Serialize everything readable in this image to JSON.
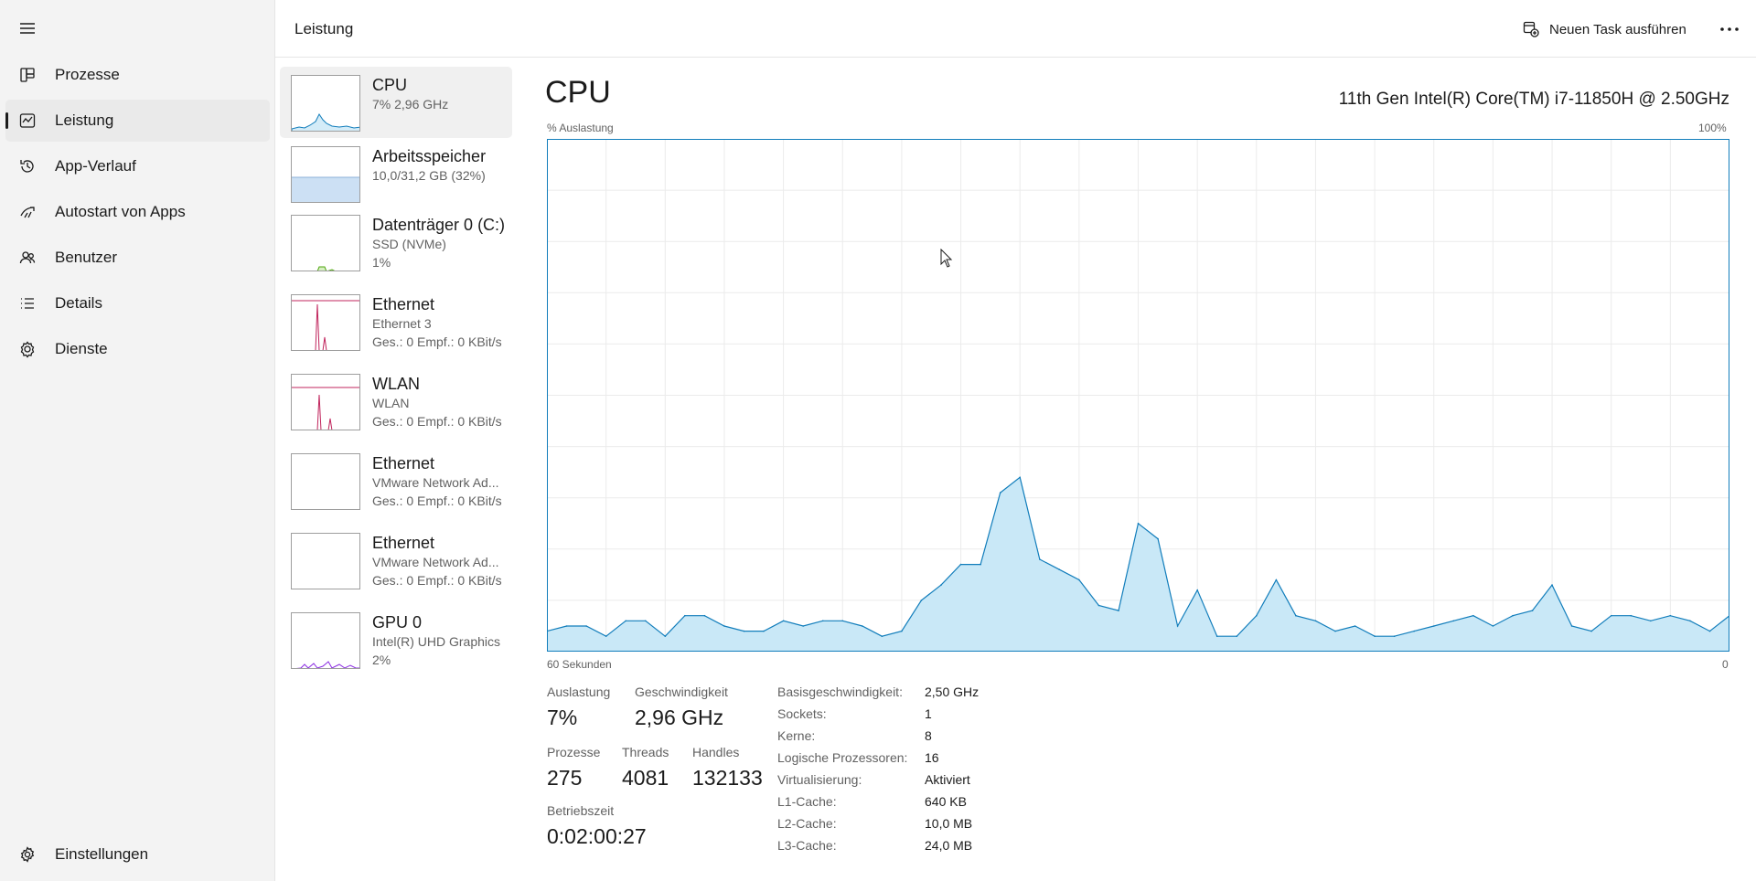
{
  "nav": {
    "items": [
      {
        "label": "Prozesse",
        "icon": "processes-icon"
      },
      {
        "label": "Leistung",
        "icon": "performance-icon",
        "active": true
      },
      {
        "label": "App-Verlauf",
        "icon": "history-icon"
      },
      {
        "label": "Autostart von Apps",
        "icon": "startup-icon"
      },
      {
        "label": "Benutzer",
        "icon": "users-icon"
      },
      {
        "label": "Details",
        "icon": "details-icon"
      },
      {
        "label": "Dienste",
        "icon": "services-icon"
      }
    ],
    "settings_label": "Einstellungen"
  },
  "header": {
    "title": "Leistung",
    "run_task_label": "Neuen Task ausführen",
    "more_label": "···"
  },
  "devices": [
    {
      "name": "CPU",
      "line2": "7%  2,96 GHz",
      "line3": "",
      "graph_color": "#117dbb",
      "graph_fill": "#d4ecf8"
    },
    {
      "name": "Arbeitsspeicher",
      "line2": "10,0/31,2 GB (32%)",
      "line3": "",
      "graph_color": "#8bb2d9",
      "graph_fill": "#cce0f4"
    },
    {
      "name": "Datenträger 0 (C:)",
      "line2": "SSD (NVMe)",
      "line3": "1%",
      "graph_color": "#4da60c",
      "graph_fill": "#d6efc2"
    },
    {
      "name": "Ethernet",
      "line2": "Ethernet 3",
      "line3": "Ges.: 0 Empf.: 0 KBit/s",
      "graph_color": "#a74f01",
      "graph_fill": "#f4e4d4"
    },
    {
      "name": "WLAN",
      "line2": "WLAN",
      "line3": "Ges.: 0 Empf.: 0 KBit/s",
      "graph_color": "#a74f01",
      "graph_fill": "#f4e4d4"
    },
    {
      "name": "Ethernet",
      "line2": "VMware Network Ad...",
      "line3": "Ges.: 0 Empf.: 0 KBit/s",
      "graph_color": "#a74f01",
      "graph_fill": "#f4e4d4"
    },
    {
      "name": "Ethernet",
      "line2": "VMware Network Ad...",
      "line3": "Ges.: 0 Empf.: 0 KBit/s",
      "graph_color": "#a74f01",
      "graph_fill": "#f4e4d4"
    },
    {
      "name": "GPU 0",
      "line2": "Intel(R) UHD Graphics",
      "line3": "2%",
      "graph_color": "#8a2be2",
      "graph_fill": "#e8d8f8"
    }
  ],
  "cpu": {
    "title": "CPU",
    "model": "11th Gen Intel(R) Core(TM) i7-11850H @ 2.50GHz",
    "y_label": "% Auslastung",
    "y_max_label": "100%",
    "x_left_label": "60 Sekunden",
    "x_right_label": "0",
    "stats": {
      "auslastung_label": "Auslastung",
      "auslastung": "7%",
      "geschwindigkeit_label": "Geschwindigkeit",
      "geschwindigkeit": "2,96 GHz",
      "prozesse_label": "Prozesse",
      "prozesse": "275",
      "threads_label": "Threads",
      "threads": "4081",
      "handles_label": "Handles",
      "handles": "132133",
      "betriebszeit_label": "Betriebszeit",
      "betriebszeit": "0:02:00:27"
    },
    "details": [
      {
        "k": "Basisgeschwindigkeit:",
        "v": "2,50 GHz"
      },
      {
        "k": "Sockets:",
        "v": "1"
      },
      {
        "k": "Kerne:",
        "v": "8"
      },
      {
        "k": "Logische Prozessoren:",
        "v": "16"
      },
      {
        "k": "Virtualisierung:",
        "v": "Aktiviert"
      },
      {
        "k": "L1-Cache:",
        "v": "640 KB"
      },
      {
        "k": "L2-Cache:",
        "v": "10,0 MB"
      },
      {
        "k": "L3-Cache:",
        "v": "24,0 MB"
      }
    ]
  },
  "chart_data": {
    "type": "area",
    "ylabel": "% Auslastung",
    "ylim": [
      0,
      100
    ],
    "xlim": [
      60,
      0
    ],
    "grid": true,
    "x": [
      60,
      59,
      58,
      57,
      56,
      55,
      54,
      53,
      52,
      51,
      50,
      49,
      48,
      47,
      46,
      45,
      44,
      43,
      42,
      41,
      40,
      39,
      38,
      37,
      36,
      35,
      34,
      33,
      32,
      31,
      30,
      29,
      28,
      27,
      26,
      25,
      24,
      23,
      22,
      21,
      20,
      19,
      18,
      17,
      16,
      15,
      14,
      13,
      12,
      11,
      10,
      9,
      8,
      7,
      6,
      5,
      4,
      3,
      2,
      1,
      0
    ],
    "values": [
      4,
      5,
      5,
      3,
      6,
      6,
      3,
      7,
      7,
      5,
      4,
      4,
      6,
      5,
      6,
      6,
      5,
      3,
      4,
      10,
      13,
      17,
      17,
      31,
      34,
      18,
      16,
      14,
      9,
      8,
      25,
      22,
      5,
      12,
      3,
      3,
      7,
      14,
      7,
      6,
      4,
      5,
      3,
      3,
      4,
      5,
      6,
      7,
      5,
      7,
      8,
      13,
      5,
      4,
      7,
      7,
      6,
      7,
      6,
      4,
      7
    ],
    "color": "#117dbb",
    "fill": "#c9e8f7"
  }
}
